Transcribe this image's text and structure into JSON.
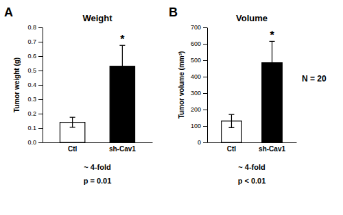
{
  "chart_data": [
    {
      "type": "bar",
      "title": "Weight",
      "panel_label": "A",
      "ylabel": "Tumor weight (g)",
      "categories": [
        "Ctl",
        "sh-Cav1"
      ],
      "values": [
        0.14,
        0.53
      ],
      "errors": [
        0.035,
        0.145
      ],
      "colors": [
        "white",
        "black"
      ],
      "ylim": [
        0,
        0.8
      ],
      "yticks": [
        {
          "value": 0.0,
          "label": "0.0"
        },
        0.1,
        0.2,
        0.3,
        0.4,
        0.5,
        0.6,
        0.7,
        0.8
      ],
      "grid": false,
      "annotations": [
        "~ 4-fold",
        "p = 0.01"
      ],
      "asterisk": {
        "text": "*",
        "category": "sh-Cav1"
      }
    },
    {
      "type": "bar",
      "title": "Volume",
      "panel_label": "B",
      "ylabel": "Tumor volume (mm³)",
      "categories": [
        "Ctl",
        "sh-Cav1"
      ],
      "values": [
        130,
        485
      ],
      "errors": [
        40,
        130
      ],
      "colors": [
        "white",
        "black"
      ],
      "ylim": [
        0,
        700
      ],
      "yticks": [
        0,
        100,
        200,
        300,
        400,
        500,
        600,
        700
      ],
      "grid": false,
      "annotations": [
        "~ 4-fold",
        "p < 0.01"
      ],
      "asterisk": {
        "text": "*",
        "category": "sh-Cav1"
      },
      "note": "N = 20"
    }
  ]
}
